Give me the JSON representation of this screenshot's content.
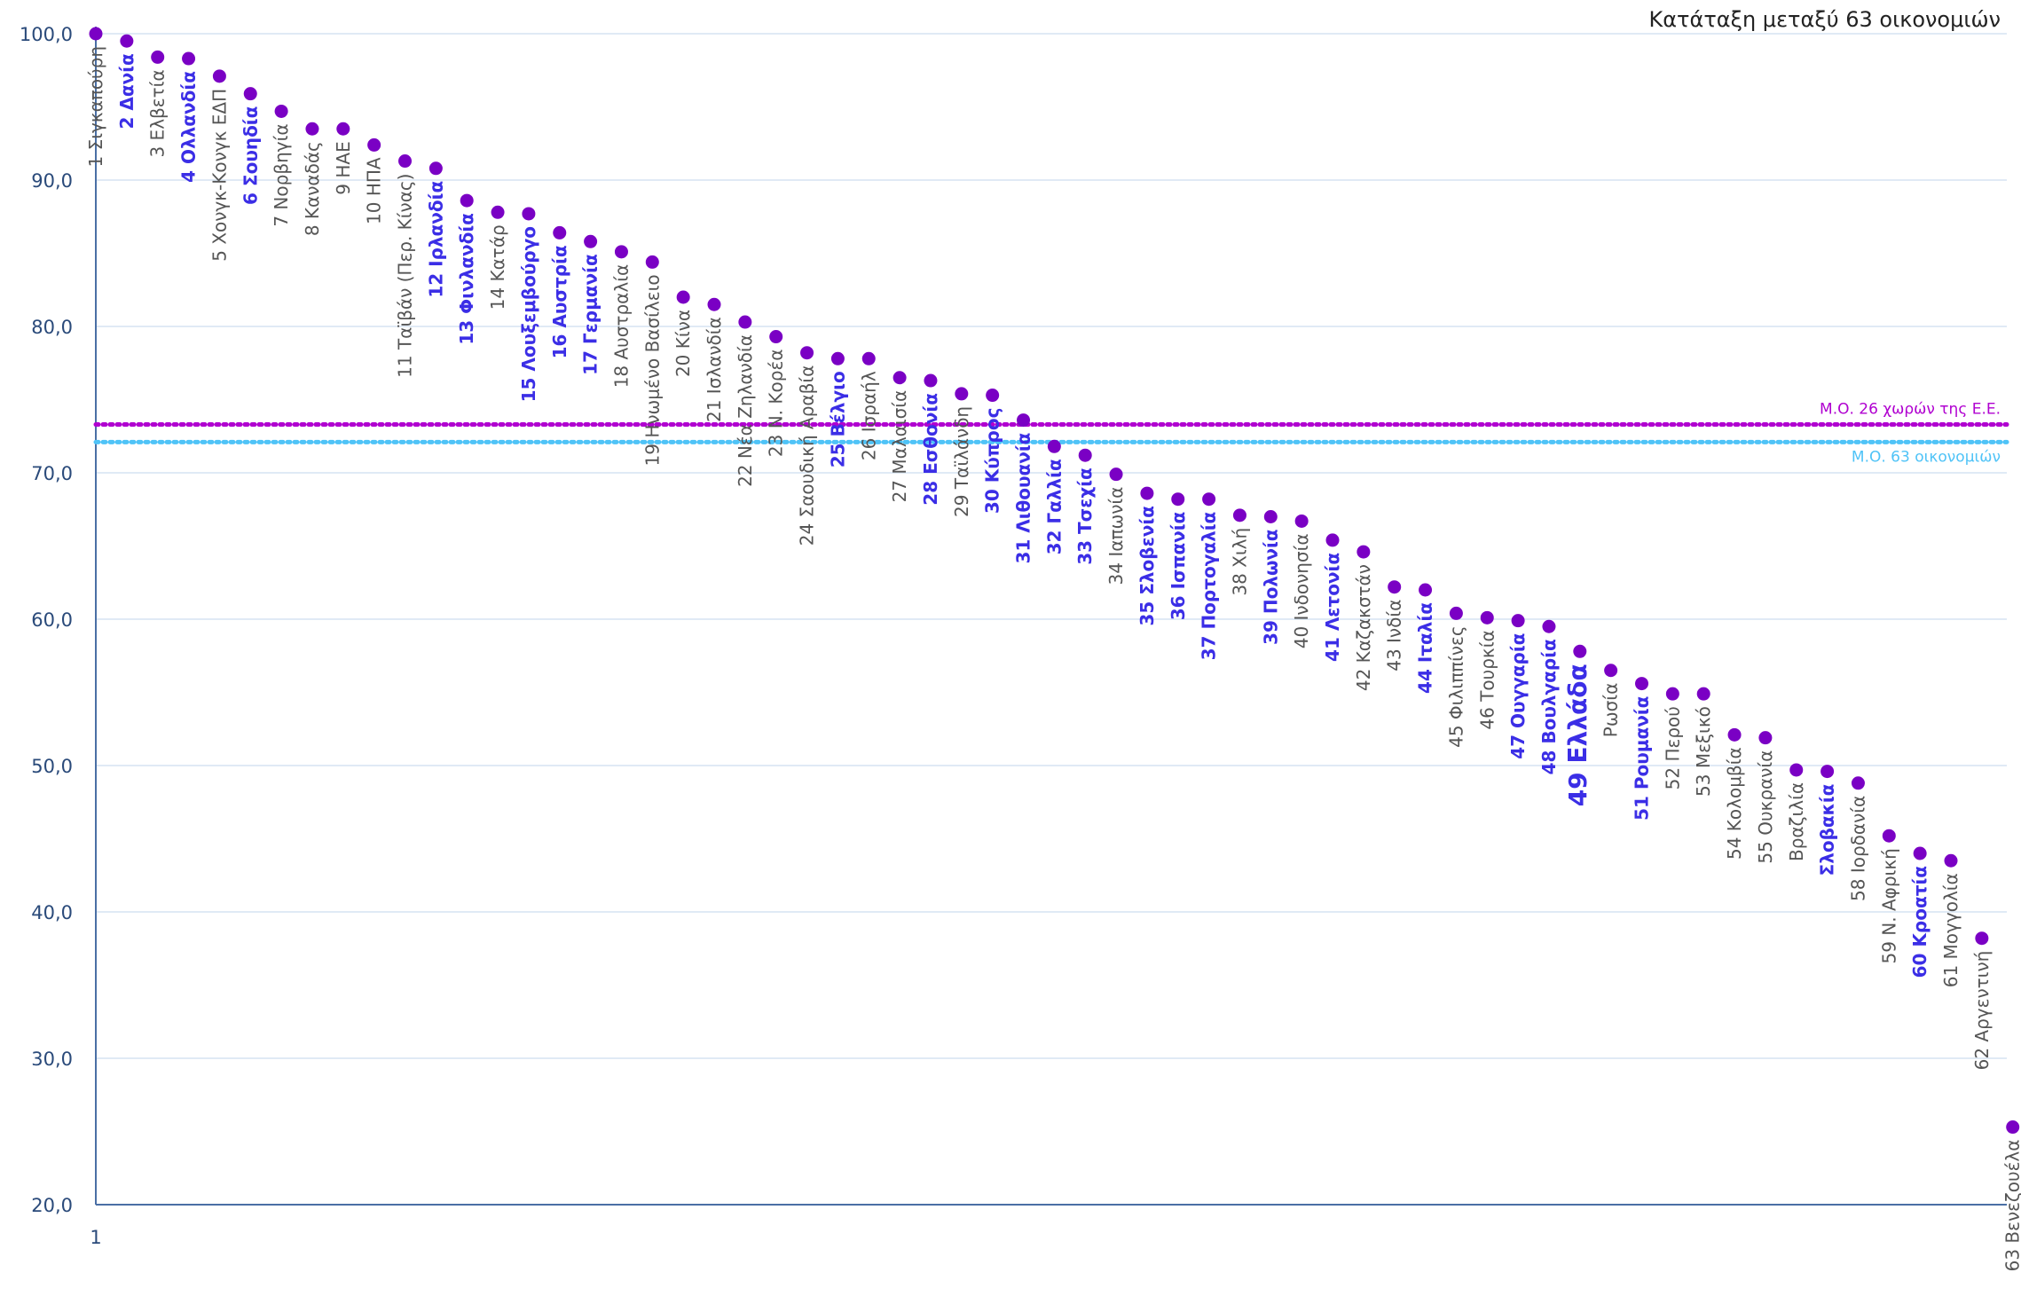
{
  "chart_data": {
    "type": "scatter",
    "title": "Κατάταξη μεταξύ 63 οικονομιών",
    "ylim": [
      20,
      100
    ],
    "yticks": [
      "100,0",
      "90,0",
      "80,0",
      "70,0",
      "60,0",
      "50,0",
      "40,0",
      "30,0",
      "20,0"
    ],
    "ytick_values": [
      100,
      90,
      80,
      70,
      60,
      50,
      40,
      30,
      20
    ],
    "xtick_label": "1",
    "grid": true,
    "colors": {
      "point": "#7a00c4",
      "eu_label": "#3b2ee6",
      "other_label": "#555555",
      "eu_avg": "#b000d0",
      "all_avg": "#4fc3f7",
      "axis": "#4a6fa5",
      "grid": "#d6e4f2"
    },
    "reference_lines": [
      {
        "label": "Μ.Ο. 26 χωρών της Ε.Ε.",
        "value": 73.3,
        "color": "#b000d0"
      },
      {
        "label": "Μ.Ο. 63 οικονομιών",
        "value": 72.1,
        "color": "#4fc3f7"
      }
    ],
    "points": [
      {
        "label": "1 Σιγκαπούρη",
        "value": 100.0,
        "eu": false
      },
      {
        "label": "2 Δανία",
        "value": 99.5,
        "eu": true
      },
      {
        "label": "3 Ελβετία",
        "value": 98.4,
        "eu": false
      },
      {
        "label": "4 Ολλανδία",
        "value": 98.3,
        "eu": true
      },
      {
        "label": "5 Χονγκ-Κονγκ ΕΔΠ",
        "value": 97.1,
        "eu": false
      },
      {
        "label": "6 Σουηδία",
        "value": 95.9,
        "eu": true
      },
      {
        "label": "7 Νορβηγία",
        "value": 94.7,
        "eu": false
      },
      {
        "label": "8 Καναδάς",
        "value": 93.5,
        "eu": false
      },
      {
        "label": "9 ΗΑΕ",
        "value": 93.5,
        "eu": false
      },
      {
        "label": "10 ΗΠΑ",
        "value": 92.4,
        "eu": false
      },
      {
        "label": "11 Ταϊβάν (Περ. Κίνας)",
        "value": 91.3,
        "eu": false
      },
      {
        "label": "12 Ιρλανδία",
        "value": 90.8,
        "eu": true
      },
      {
        "label": "13 Φινλανδία",
        "value": 88.6,
        "eu": true
      },
      {
        "label": "14 Κατάρ",
        "value": 87.8,
        "eu": false
      },
      {
        "label": "15 Λουξεμβούργο",
        "value": 87.7,
        "eu": true
      },
      {
        "label": "16 Αυστρία",
        "value": 86.4,
        "eu": true
      },
      {
        "label": "17 Γερμανία",
        "value": 85.8,
        "eu": true
      },
      {
        "label": "18 Αυστραλία",
        "value": 85.1,
        "eu": false
      },
      {
        "label": "19 Ηνωμένο Βασίλειο",
        "value": 84.4,
        "eu": false
      },
      {
        "label": "20 Κίνα",
        "value": 82.0,
        "eu": false
      },
      {
        "label": "21 Ισλανδία",
        "value": 81.5,
        "eu": false
      },
      {
        "label": "22 Νέα Ζηλανδία",
        "value": 80.3,
        "eu": false
      },
      {
        "label": "23 Ν. Κορέα",
        "value": 79.3,
        "eu": false
      },
      {
        "label": "24 Σαουδική Αραβία",
        "value": 78.2,
        "eu": false
      },
      {
        "label": "25 Βέλγιο",
        "value": 77.8,
        "eu": true
      },
      {
        "label": "26 Ισραήλ",
        "value": 77.8,
        "eu": false
      },
      {
        "label": "27 Μαλαισία",
        "value": 76.5,
        "eu": false
      },
      {
        "label": "28 Εσθονία",
        "value": 76.3,
        "eu": true
      },
      {
        "label": "29 Ταϊλάνδη",
        "value": 75.4,
        "eu": false
      },
      {
        "label": "30 Κύπρος",
        "value": 75.3,
        "eu": true
      },
      {
        "label": "31 Λιθουανία",
        "value": 73.6,
        "eu": true
      },
      {
        "label": "32 Γαλλία",
        "value": 71.8,
        "eu": true
      },
      {
        "label": "33 Τσεχία",
        "value": 71.2,
        "eu": true
      },
      {
        "label": "34 Ιαπωνία",
        "value": 69.9,
        "eu": false
      },
      {
        "label": "35 Σλοβενία",
        "value": 68.6,
        "eu": true
      },
      {
        "label": "36 Ισπανία",
        "value": 68.2,
        "eu": true
      },
      {
        "label": "37 Πορτογαλία",
        "value": 68.2,
        "eu": true
      },
      {
        "label": "38 Χιλή",
        "value": 67.1,
        "eu": false
      },
      {
        "label": "39 Πολωνία",
        "value": 67.0,
        "eu": true
      },
      {
        "label": "40 Ινδονησία",
        "value": 66.7,
        "eu": false
      },
      {
        "label": "41 Λετονία",
        "value": 65.4,
        "eu": true
      },
      {
        "label": "42 Καζακστάν",
        "value": 64.6,
        "eu": false
      },
      {
        "label": "43 Ινδία",
        "value": 62.2,
        "eu": false
      },
      {
        "label": "44 Ιταλία",
        "value": 62.0,
        "eu": true
      },
      {
        "label": "45 Φιλιππίνες",
        "value": 60.4,
        "eu": false
      },
      {
        "label": "46 Τουρκία",
        "value": 60.1,
        "eu": false
      },
      {
        "label": "47 Ουγγαρία",
        "value": 59.9,
        "eu": true
      },
      {
        "label": "48 Βουλγαρία",
        "value": 59.5,
        "eu": true
      },
      {
        "label": "49 Ελλάδα",
        "value": 57.8,
        "eu": true,
        "highlight": true
      },
      {
        "label": "Ρωσία",
        "value": 56.5,
        "eu": false
      },
      {
        "label": "51 Ρουμανία",
        "value": 55.6,
        "eu": true
      },
      {
        "label": "52 Περού",
        "value": 54.9,
        "eu": false
      },
      {
        "label": "53 Μεξικό",
        "value": 54.9,
        "eu": false
      },
      {
        "label": "54 Κολομβία",
        "value": 52.1,
        "eu": false
      },
      {
        "label": "55 Ουκρανία",
        "value": 51.9,
        "eu": false
      },
      {
        "label": "Βραζιλία",
        "value": 49.7,
        "eu": false
      },
      {
        "label": "Σλοβακία",
        "value": 49.6,
        "eu": true
      },
      {
        "label": "58 Ιορδανία",
        "value": 48.8,
        "eu": false
      },
      {
        "label": "59 Ν. Αφρική",
        "value": 45.2,
        "eu": false
      },
      {
        "label": "60 Κροατία",
        "value": 44.0,
        "eu": true
      },
      {
        "label": "61 Μογγολία",
        "value": 43.5,
        "eu": false
      },
      {
        "label": "62 Αργεντινή",
        "value": 38.2,
        "eu": false
      },
      {
        "label": "63 Βενεζουέλα",
        "value": 25.3,
        "eu": false
      }
    ]
  }
}
